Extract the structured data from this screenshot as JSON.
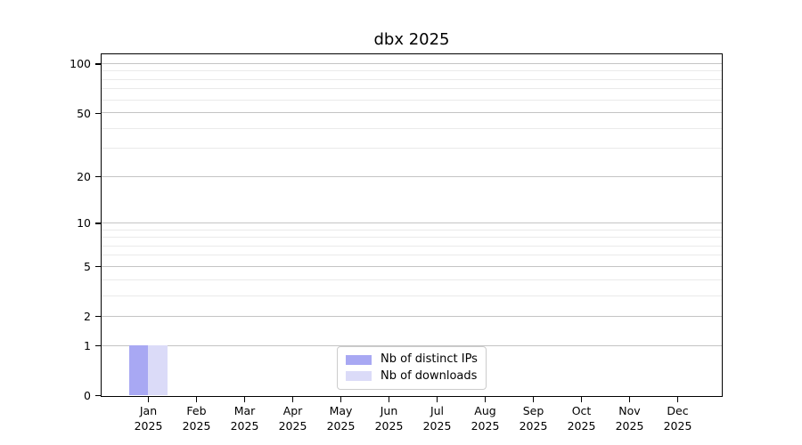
{
  "chart_data": {
    "type": "bar",
    "title": "dbx 2025",
    "categories": [
      "Jan",
      "Feb",
      "Mar",
      "Apr",
      "May",
      "Jun",
      "Jul",
      "Aug",
      "Sep",
      "Oct",
      "Nov",
      "Dec"
    ],
    "x_year": "2025",
    "series": [
      {
        "name": "Nb of distinct IPs",
        "color": "#a8a8f3",
        "values": [
          1,
          0,
          0,
          0,
          0,
          0,
          0,
          0,
          0,
          0,
          0,
          0
        ]
      },
      {
        "name": "Nb of downloads",
        "color": "#dbdbf8",
        "values": [
          1,
          0,
          0,
          0,
          0,
          0,
          0,
          0,
          0,
          0,
          0,
          0
        ]
      }
    ],
    "y_axis": {
      "scale": "log1p",
      "ticks": [
        0,
        1,
        2,
        5,
        10,
        20,
        50,
        100
      ],
      "minor_gridlines": [
        3,
        4,
        6,
        7,
        8,
        9,
        30,
        40,
        60,
        70,
        80,
        90
      ],
      "top_value": 114,
      "bottom_value": 0
    },
    "grid": {
      "major_color": "#c4c4c4",
      "minor_color": "#eaeaea"
    },
    "legend_position": "lower center",
    "axis_color": "#000000"
  }
}
